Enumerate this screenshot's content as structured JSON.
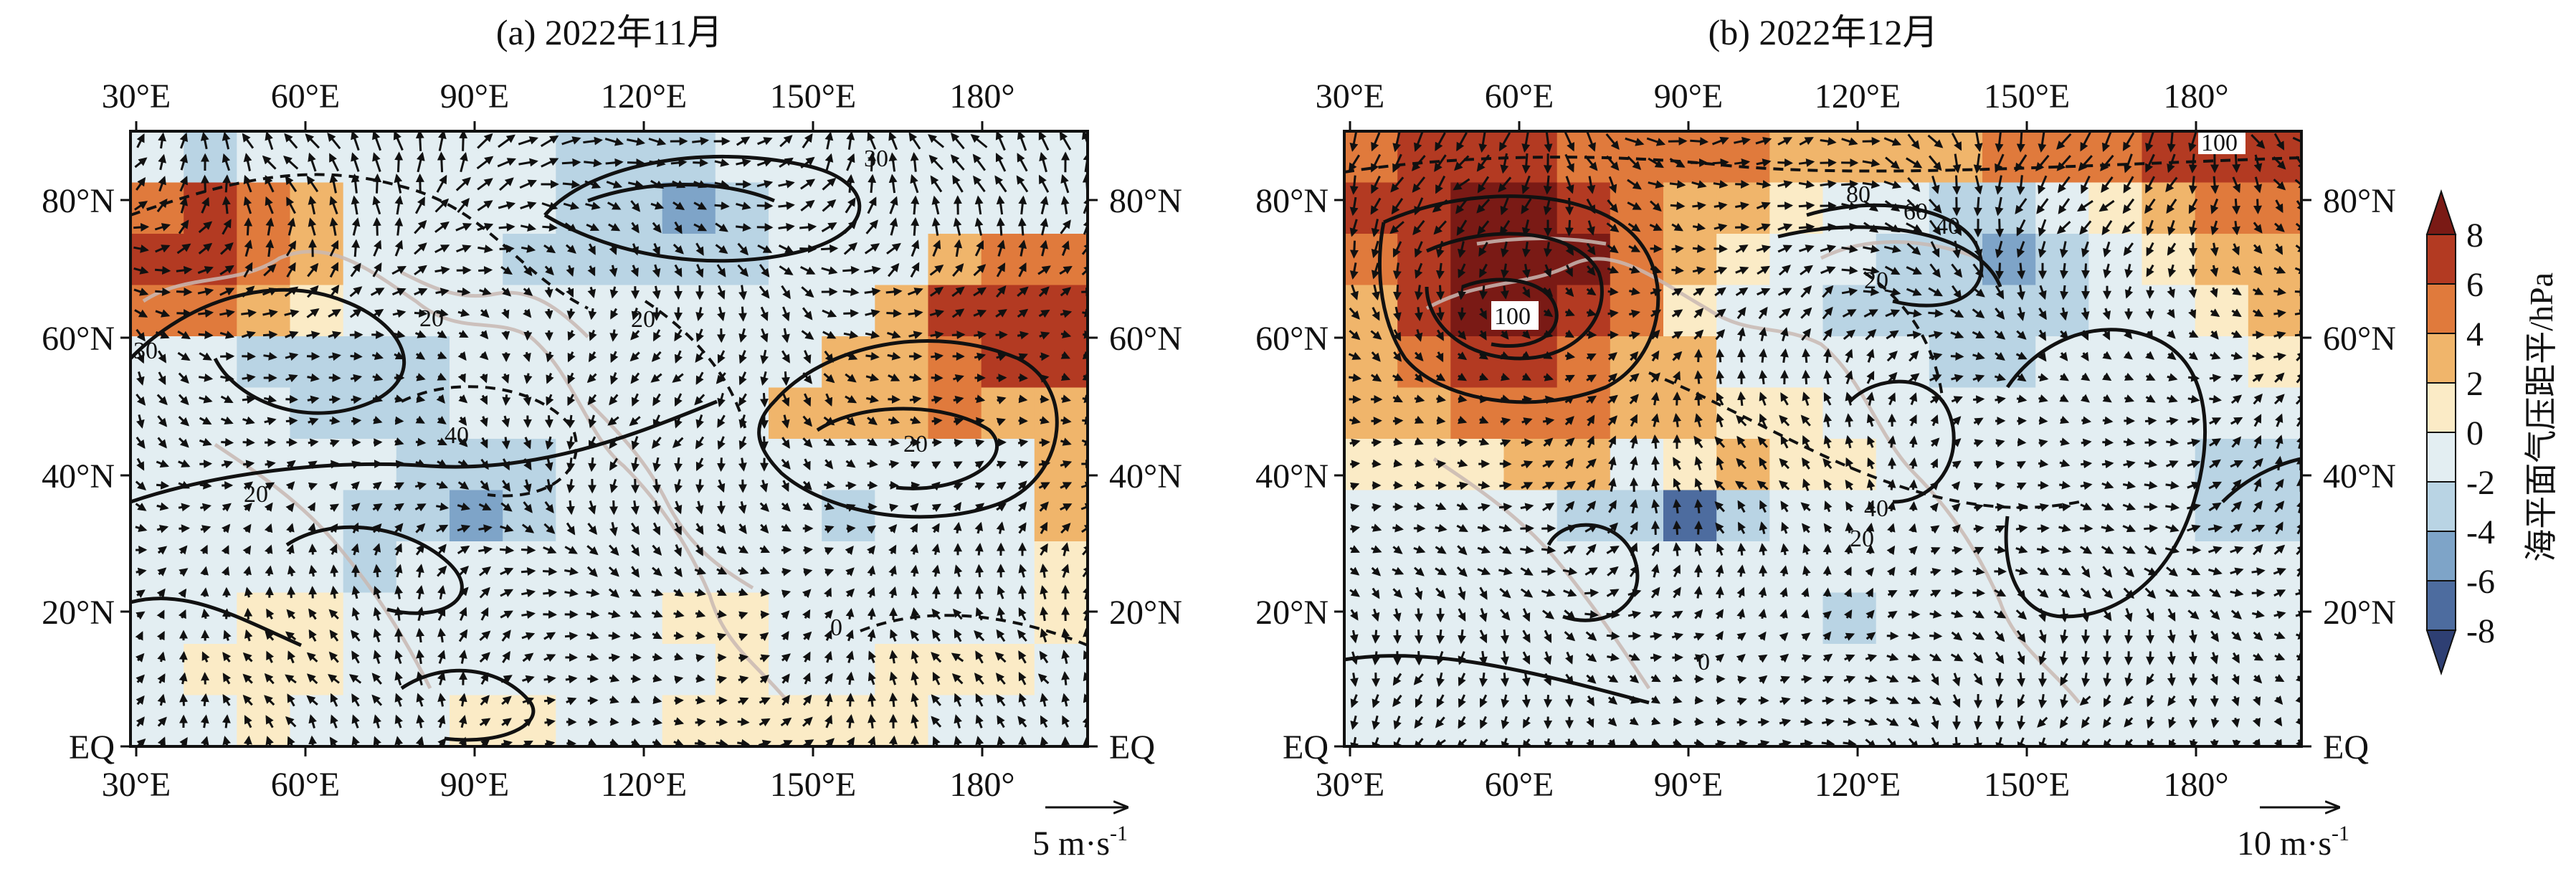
{
  "panels": [
    {
      "id": "a",
      "title": "(a) 2022年11月",
      "x_ticks": [
        "30°E",
        "60°E",
        "90°E",
        "120°E",
        "150°E",
        "180°"
      ],
      "y_ticks": [
        "80°N",
        "60°N",
        "40°N",
        "20°N",
        "EQ"
      ],
      "reference_vector": "5 m·s",
      "reference_exp": "-1",
      "contour_labels": [
        "30",
        "20",
        "40",
        "20",
        "20",
        "20",
        "0",
        "30"
      ],
      "anomaly_cells": [
        [
          -2,
          -3,
          -2,
          -1,
          -2,
          -1,
          -1,
          -2,
          -3,
          -4,
          -3,
          -2,
          -1,
          -1,
          -2,
          -2,
          -1,
          -1
        ],
        [
          5,
          6,
          4,
          2,
          -2,
          -2,
          -1,
          -2,
          -3,
          -4,
          -5,
          -3,
          -2,
          -2,
          -1,
          -1,
          -1,
          -1
        ],
        [
          6,
          7,
          5,
          3,
          -1,
          -2,
          -2,
          -3,
          -3,
          -3,
          -4,
          -3,
          -2,
          -2,
          -1,
          2,
          4,
          5
        ],
        [
          4,
          5,
          3,
          1,
          -2,
          -2,
          -2,
          -2,
          -2,
          -2,
          -2,
          -2,
          -1,
          -1,
          3,
          6,
          7,
          7
        ],
        [
          -1,
          -2,
          -3,
          -4,
          -4,
          -3,
          -2,
          -2,
          -2,
          -2,
          -2,
          -1,
          -1,
          2,
          3,
          5,
          6,
          7
        ],
        [
          -1,
          -2,
          -2,
          -3,
          -3,
          -3,
          -2,
          -2,
          -1,
          -1,
          -1,
          -1,
          2,
          3,
          3,
          4,
          3,
          3
        ],
        [
          -1,
          -1,
          -1,
          -2,
          -2,
          -3,
          -4,
          -3,
          -2,
          -1,
          -1,
          -1,
          -2,
          -2,
          -2,
          -1,
          -2,
          3
        ],
        [
          -1,
          -1,
          -1,
          -2,
          -3,
          -3,
          -6,
          -4,
          -2,
          -1,
          -1,
          -1,
          -2,
          -3,
          -2,
          -1,
          -1,
          2
        ],
        [
          -1,
          -1,
          -1,
          -2,
          -3,
          -2,
          -2,
          -1,
          -2,
          -2,
          -1,
          -1,
          -2,
          -2,
          -2,
          -1,
          -1,
          1
        ],
        [
          -1,
          -1,
          1,
          1,
          -1,
          -1,
          -1,
          -1,
          -2,
          -1,
          1,
          1,
          -1,
          -1,
          -1,
          -1,
          -1,
          1
        ],
        [
          -1,
          1,
          1,
          1,
          -1,
          -1,
          -1,
          -1,
          -1,
          -1,
          -1,
          1,
          -1,
          -1,
          1,
          1,
          1,
          -1
        ],
        [
          -1,
          -1,
          1,
          -1,
          -1,
          -1,
          1,
          1,
          -1,
          -1,
          1,
          1,
          1,
          1,
          1,
          -1,
          -1,
          -1
        ]
      ]
    },
    {
      "id": "b",
      "title": "(b) 2022年12月",
      "x_ticks": [
        "30°E",
        "60°E",
        "90°E",
        "120°E",
        "150°E",
        "180°"
      ],
      "y_ticks": [
        "80°N",
        "60°N",
        "40°N",
        "20°N",
        "EQ"
      ],
      "reference_vector": "10 m·s",
      "reference_exp": "-1",
      "contour_labels": [
        "100",
        "80",
        "60",
        "40",
        "20",
        "40",
        "20",
        "0",
        "100"
      ],
      "anomaly_cells": [
        [
          5,
          6,
          7,
          6,
          5,
          5,
          5,
          4,
          3,
          2,
          3,
          3,
          4,
          4,
          5,
          6,
          7,
          7
        ],
        [
          6,
          7,
          8,
          8,
          7,
          5,
          3,
          2,
          1,
          -1,
          -1,
          -3,
          -4,
          -2,
          1,
          3,
          4,
          5
        ],
        [
          4,
          7,
          8,
          9,
          8,
          5,
          2,
          1,
          -1,
          -2,
          -3,
          -4,
          -5,
          -4,
          -2,
          1,
          3,
          3
        ],
        [
          3,
          6,
          8,
          8,
          7,
          4,
          1,
          -1,
          -2,
          -3,
          -3,
          -4,
          -4,
          -3,
          -2,
          -1,
          1,
          2
        ],
        [
          2,
          4,
          6,
          6,
          5,
          3,
          2,
          -1,
          -1,
          -2,
          -2,
          -4,
          -3,
          -2,
          -2,
          -1,
          -1,
          1
        ],
        [
          2,
          3,
          4,
          4,
          4,
          3,
          2,
          1,
          1,
          -1,
          -1,
          -2,
          -2,
          -2,
          -1,
          -1,
          -1,
          -1
        ],
        [
          1,
          1,
          1,
          2,
          3,
          -1,
          1,
          2,
          1,
          1,
          -1,
          -1,
          -1,
          -1,
          -1,
          -1,
          -3,
          -3
        ],
        [
          -1,
          -1,
          -1,
          -1,
          -3,
          -3,
          -7,
          -3,
          -1,
          -1,
          -1,
          -1,
          -1,
          -1,
          -1,
          -1,
          -3,
          -4
        ],
        [
          -1,
          -1,
          -1,
          -1,
          -2,
          -1,
          -2,
          -1,
          -1,
          -1,
          -1,
          -2,
          -1,
          -1,
          -1,
          -1,
          -1,
          -2
        ],
        [
          -1,
          -1,
          -1,
          -1,
          -1,
          -1,
          -1,
          -1,
          -1,
          -3,
          -2,
          -1,
          -1,
          -1,
          -1,
          -1,
          -1,
          -1
        ],
        [
          -1,
          -1,
          -1,
          -1,
          -1,
          -1,
          -1,
          -1,
          -1,
          -2,
          -1,
          -1,
          -1,
          -1,
          -1,
          -1,
          -1,
          -1
        ],
        [
          -1,
          -1,
          -1,
          -1,
          -1,
          -1,
          -1,
          -1,
          -1,
          -1,
          -1,
          -1,
          -1,
          -1,
          -1,
          -1,
          -1,
          -1
        ]
      ]
    }
  ],
  "colorbar": {
    "ticks": [
      "8",
      "6",
      "4",
      "2",
      "0",
      "-2",
      "-4",
      "-6",
      "-8"
    ],
    "label": "海平面气压距平/hPa",
    "colors": [
      "#2e3f73",
      "#4d6c9f",
      "#7ea4c8",
      "#b9d4e4",
      "#e3eef2",
      "#fbebc6",
      "#f0b56b",
      "#e07a3c",
      "#b33a22",
      "#7a1a15"
    ]
  }
}
